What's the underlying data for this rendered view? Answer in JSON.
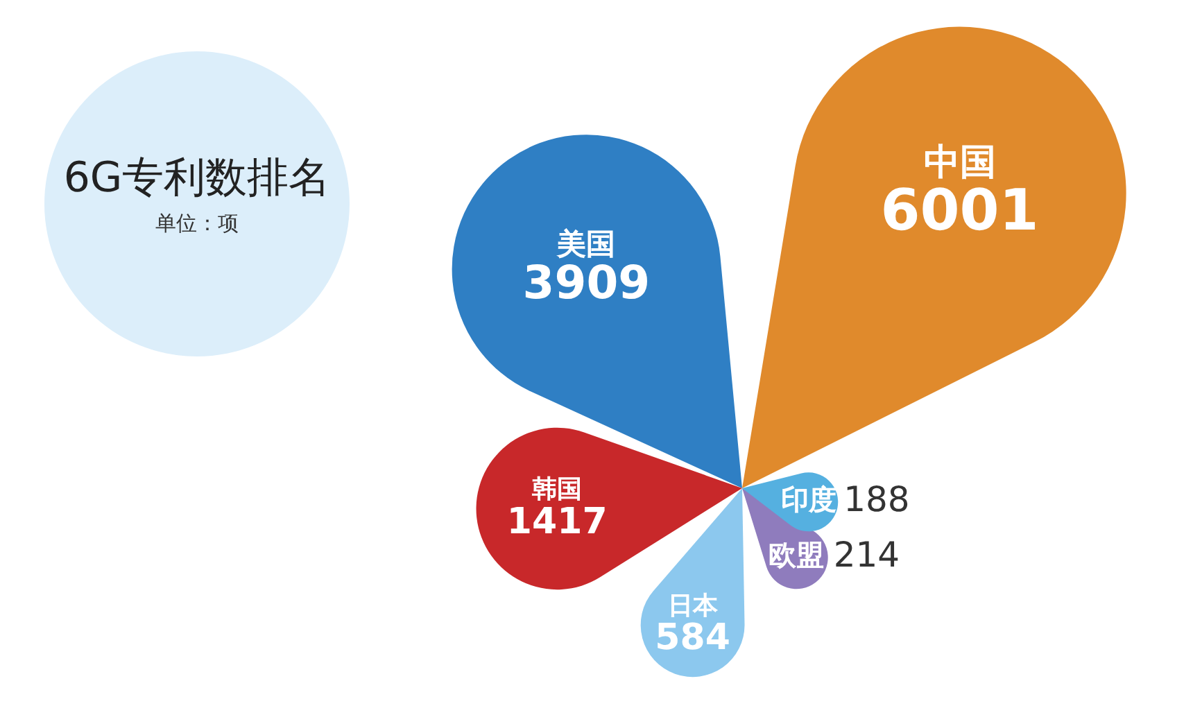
{
  "chart_data": {
    "type": "other",
    "title": "6G专利数排名",
    "subtitle": "单位：项",
    "categories": [
      "中国",
      "美国",
      "韩国",
      "日本",
      "欧盟",
      "印度"
    ],
    "values": [
      6001,
      3909,
      1417,
      584,
      214,
      188
    ],
    "colors": [
      "#e08a2c",
      "#2f7fc4",
      "#c8282a",
      "#8cc8ee",
      "#8f7cbd",
      "#55b0e0"
    ],
    "data_labels": true
  }
}
